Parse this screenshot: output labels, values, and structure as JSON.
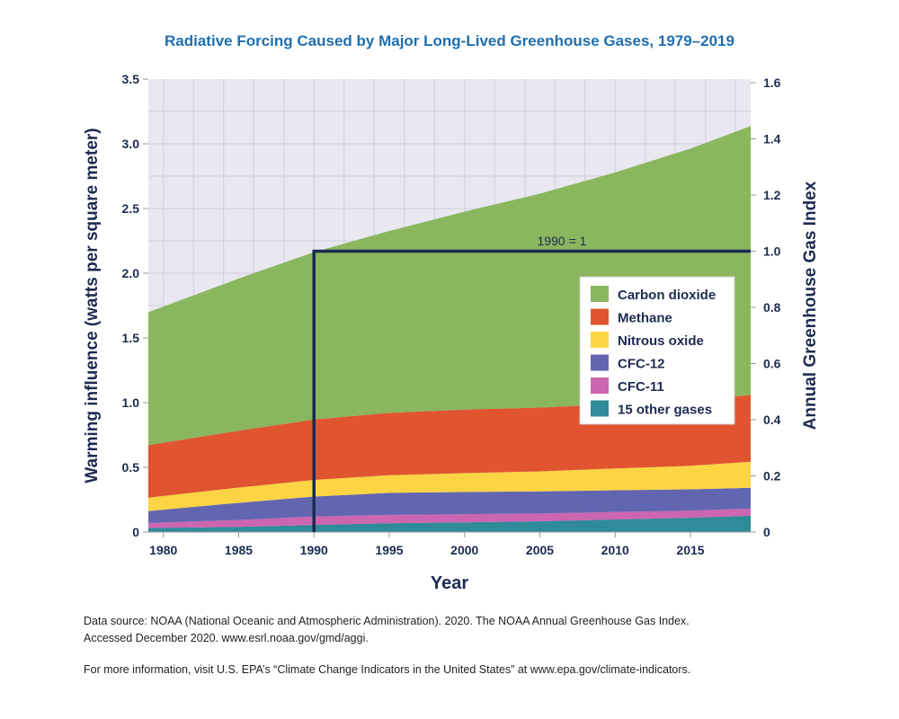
{
  "chart_data": {
    "type": "area",
    "stacked": true,
    "title": "Radiative Forcing Caused by Major Long-Lived Greenhouse Gases, 1979–2019",
    "xlabel": "Year",
    "ylabel": "Warming influence (watts per square meter)",
    "ylabel_right": "Annual Greenhouse Gas Index",
    "xlim": [
      1979,
      2019
    ],
    "ylim": [
      0,
      3.5
    ],
    "ylim_right": [
      0,
      1.6
    ],
    "xticks": [
      "1980",
      "1985",
      "1990",
      "1995",
      "2000",
      "2005",
      "2010",
      "2015"
    ],
    "yticks": [
      "0",
      "0.5",
      "1.0",
      "1.5",
      "2.0",
      "2.5",
      "3.0",
      "3.5"
    ],
    "yticks_right": [
      "0",
      "0.2",
      "0.4",
      "0.6",
      "0.8",
      "1.0",
      "1.2",
      "1.4",
      "1.6"
    ],
    "grid": true,
    "legend_position": "right",
    "annotation": "1990 = 1",
    "x": [
      1979,
      1985,
      1990,
      1995,
      2000,
      2005,
      2010,
      2015,
      2019
    ],
    "series": [
      {
        "name": "15 other gases",
        "color": "#2f8a9a",
        "values": [
          0.031,
          0.04,
          0.055,
          0.068,
          0.075,
          0.083,
          0.097,
          0.11,
          0.126
        ]
      },
      {
        "name": "CFC-11",
        "color": "#cc66b0",
        "values": [
          0.039,
          0.054,
          0.065,
          0.065,
          0.063,
          0.06,
          0.058,
          0.056,
          0.055
        ]
      },
      {
        "name": "CFC-12",
        "color": "#6266b0",
        "values": [
          0.092,
          0.132,
          0.154,
          0.17,
          0.172,
          0.171,
          0.168,
          0.164,
          0.161
        ]
      },
      {
        "name": "Nitrous oxide",
        "color": "#fdd444",
        "values": [
          0.104,
          0.118,
          0.129,
          0.136,
          0.146,
          0.155,
          0.168,
          0.182,
          0.201
        ]
      },
      {
        "name": "Methane",
        "color": "#e05530",
        "values": [
          0.406,
          0.439,
          0.467,
          0.482,
          0.49,
          0.493,
          0.497,
          0.507,
          0.516
        ]
      },
      {
        "name": "Carbon dioxide",
        "color": "#8ab65e",
        "values": [
          1.027,
          1.176,
          1.293,
          1.405,
          1.53,
          1.653,
          1.791,
          1.944,
          2.078
        ]
      }
    ]
  },
  "footer": {
    "line1": "Data source: NOAA (National Oceanic and Atmospheric Administration). 2020. The NOAA Annual Greenhouse Gas Index.",
    "line2": "Accessed December 2020. www.esrl.noaa.gov/gmd/aggi.",
    "line3": "For more information, visit U.S. EPA’s “Climate Change Indicators in the United States” at www.epa.gov/climate-indicators."
  }
}
